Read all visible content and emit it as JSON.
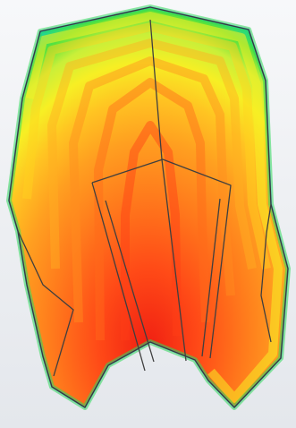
{
  "viewport": {
    "background_color": "#eef0f3"
  },
  "contour_scale": {
    "colors": [
      "#1bb4ff",
      "#18d6a0",
      "#23e05a",
      "#7be52a",
      "#d2f03a",
      "#f7f126",
      "#ffd21f",
      "#ffb021",
      "#ff8d1f",
      "#ff6a1b",
      "#ff3f16",
      "#f01f12"
    ]
  },
  "model": {
    "outline_color": "#3a3a3a",
    "edge_color": "#555555"
  }
}
